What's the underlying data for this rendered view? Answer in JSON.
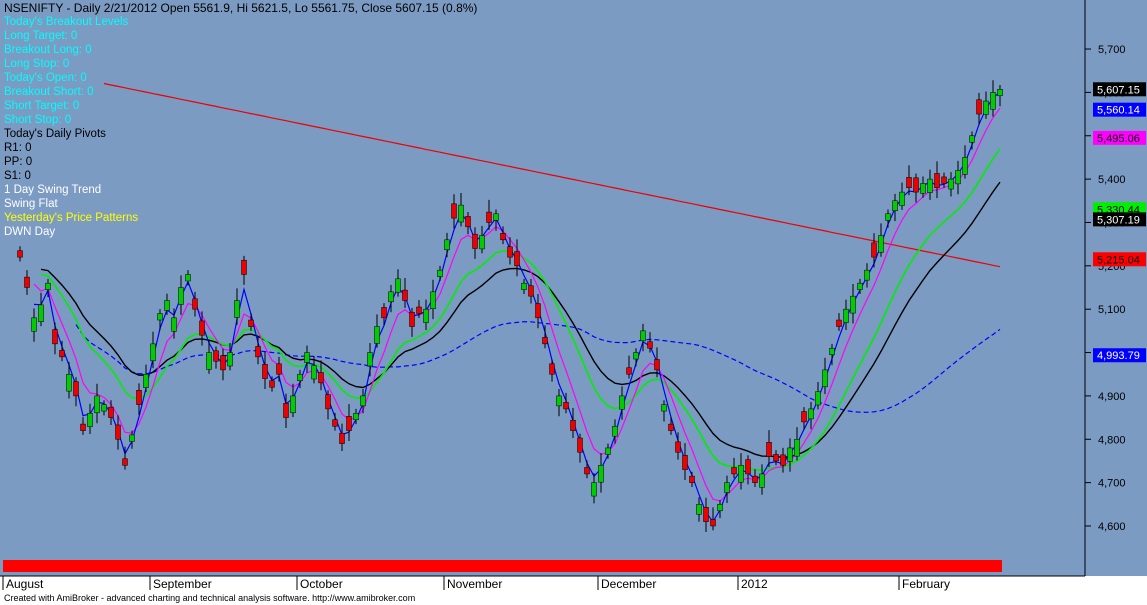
{
  "title": "NSENIFTY - Daily 2/21/2012 Open 5561.9, Hi 5621.5, Lo 5561.75, Close 5607.15 (0.8%)",
  "footer": "Created with AmiBroker - advanced charting and technical analysis software. http://www.amibroker.com",
  "info_lines": [
    {
      "text": "Today's Breakout Levels",
      "color": "#00ffff"
    },
    {
      "text": "Long Target: 0",
      "color": "#00ffff"
    },
    {
      "text": "Breakout Long: 0",
      "color": "#00ffff"
    },
    {
      "text": "Long Stop: 0",
      "color": "#00ffff"
    },
    {
      "text": "Today's Open: 0",
      "color": "#00ffff"
    },
    {
      "text": "Breakout Short: 0",
      "color": "#00ffff"
    },
    {
      "text": "Short Target: 0",
      "color": "#00ffff"
    },
    {
      "text": "Short Stop: 0",
      "color": "#00ffff"
    },
    {
      "text": "Today's Daily Pivots",
      "color": "#000000"
    },
    {
      "text": "R1: 0",
      "color": "#000000"
    },
    {
      "text": "PP: 0",
      "color": "#000000"
    },
    {
      "text": "S1: 0",
      "color": "#000000"
    },
    {
      "text": "1 Day Swing Trend",
      "color": "#ffffff"
    },
    {
      "text": " Swing Flat",
      "color": "#ffffff"
    },
    {
      "text": "Yesterday's Price Patterns",
      "color": "#ffff00"
    },
    {
      "text": " DWN Day",
      "color": "#ffffff"
    }
  ],
  "colors": {
    "background": "#7b9bc3",
    "up": "#00cc00",
    "down": "#ee0000",
    "ma_fast": "#0000ff",
    "ma_magenta": "#ff00ff",
    "ma_green": "#00ee00",
    "ma_black": "#000000",
    "ma_red": "#ee0000",
    "ma_dashed": "#0000ff",
    "bottom_band": "#ff0000"
  },
  "chart_data": {
    "type": "candlestick",
    "ylim": [
      4540,
      5790
    ],
    "y_ticks": [
      "4,600",
      "4,700",
      "4,800",
      "4,900",
      "5,000",
      "5,100",
      "5,200",
      "5,300",
      "5,400",
      "5,500",
      "5,600",
      "5,700"
    ],
    "x_labels": [
      {
        "label": "August",
        "bar": 0
      },
      {
        "label": "September",
        "bar": 21
      },
      {
        "label": "October",
        "bar": 42
      },
      {
        "label": "November",
        "bar": 63
      },
      {
        "label": "December",
        "bar": 85
      },
      {
        "label": "2012",
        "bar": 105
      },
      {
        "label": "February",
        "bar": 128
      }
    ],
    "bar_count": 141,
    "closes": [
      5220,
      5150,
      5080,
      5110,
      5160,
      5020,
      4990,
      4950,
      4900,
      4820,
      4860,
      4900,
      4880,
      4850,
      4800,
      4740,
      4810,
      4880,
      4950,
      5020,
      5090,
      5120,
      5080,
      5150,
      5180,
      5100,
      5040,
      5000,
      4980,
      4960,
      5000,
      5120,
      5180,
      5060,
      4990,
      4940,
      4920,
      4950,
      4850,
      4900,
      4950,
      5000,
      4970,
      4930,
      4870,
      4830,
      4790,
      4820,
      4860,
      4900,
      5000,
      5060,
      5080,
      5140,
      5170,
      5120,
      5060,
      5090,
      5100,
      5140,
      5190,
      5260,
      5310,
      5340,
      5290,
      5240,
      5270,
      5300,
      5320,
      5260,
      5220,
      5200,
      5160,
      5130,
      5080,
      5020,
      4950,
      4900,
      4870,
      4820,
      4770,
      4720,
      4700,
      4740,
      4780,
      4830,
      4900,
      4950,
      5000,
      5050,
      5010,
      4960,
      4880,
      4820,
      4770,
      4730,
      4700,
      4650,
      4610,
      4600,
      4650,
      4700,
      4720,
      4740,
      4720,
      4700,
      4720,
      4760,
      4750,
      4740,
      4780,
      4800,
      4840,
      4870,
      4910,
      4960,
      5010,
      5060,
      5100,
      5130,
      5160,
      5190,
      5220,
      5270,
      5320,
      5350,
      5370,
      5380,
      5370,
      5390,
      5400,
      5380,
      5390,
      5400,
      5420,
      5450,
      5500,
      5550,
      5580,
      5600,
      5607.15
    ],
    "price_labels": [
      {
        "text": "5,607.15",
        "value": 5607.15,
        "bg": "#000000",
        "fg": "#ffffff"
      },
      {
        "text": "5,560.14",
        "value": 5560.14,
        "bg": "#0000ff",
        "fg": "#ffffff"
      },
      {
        "text": "5,495.06",
        "value": 5495.06,
        "bg": "#ff00ff",
        "fg": "#000000"
      },
      {
        "text": "5,330.44",
        "value": 5330.44,
        "bg": "#00ee00",
        "fg": "#000000"
      },
      {
        "text": "5,307.19",
        "value": 5307.19,
        "bg": "#000000",
        "fg": "#ffffff"
      },
      {
        "text": "5,215.04",
        "value": 5215.04,
        "bg": "#ff0000",
        "fg": "#000000"
      },
      {
        "text": "4,993.79",
        "value": 4993.79,
        "bg": "#0000ff",
        "fg": "#ffffff"
      }
    ]
  }
}
